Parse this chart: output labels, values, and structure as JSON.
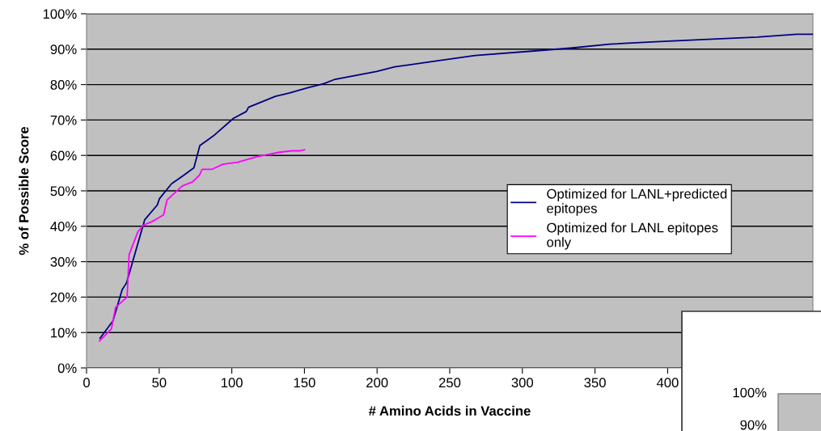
{
  "chart_data": [
    {
      "type": "line",
      "xlabel": "# Amino Acids in Vaccine",
      "ylabel": "% of Possible Score",
      "xlim": [
        0,
        500
      ],
      "xticks": [
        0,
        50,
        100,
        150,
        200,
        250,
        300,
        350,
        400
      ],
      "ylim": [
        0,
        100
      ],
      "yticks": [
        {
          "value": 0,
          "label": "0%"
        },
        {
          "value": 10,
          "label": "10%"
        },
        {
          "value": 20,
          "label": "20%"
        },
        {
          "value": 30,
          "label": "30%"
        },
        {
          "value": 40,
          "label": "40%"
        },
        {
          "value": 50,
          "label": "50%"
        },
        {
          "value": 60,
          "label": "60%"
        },
        {
          "value": 70,
          "label": "70%"
        },
        {
          "value": 80,
          "label": "80%"
        },
        {
          "value": 90,
          "label": "90%"
        },
        {
          "value": 100,
          "label": "100%"
        }
      ],
      "grid": "y",
      "legend": "right",
      "marker": "none",
      "line_style": "solid",
      "series": [
        {
          "name": "Optimized for LANL+predicted epitopes",
          "color": "#000080",
          "x": [
            9.3,
            18.2,
            24.5,
            27.5,
            40,
            48.7,
            50.2,
            58.5,
            66.9,
            73.9,
            78,
            87.3,
            101.2,
            110,
            111.5,
            130,
            139.4,
            152,
            163.5,
            170.4,
            199.7,
            212.2,
            242.7,
            267.5,
            308.2,
            333,
            360,
            391.7,
            427.7,
            461.6,
            488.7,
            500
          ],
          "values": [
            8.4,
            13.3,
            22.1,
            24,
            41.8,
            46,
            47.8,
            52,
            54.4,
            56.5,
            62.8,
            65.5,
            70.5,
            72.4,
            73.6,
            76.7,
            77.6,
            79.1,
            80.3,
            81.4,
            83.7,
            85,
            86.8,
            88.2,
            89.5,
            90.3,
            91.4,
            92.1,
            92.8,
            93.4,
            94.2,
            94.2
          ]
        },
        {
          "name": "Optimized for LANL epitopes only",
          "color": "#ff00ff",
          "x": [
            8.9,
            17.1,
            20,
            27.9,
            29.3,
            35.3,
            39,
            45,
            53,
            55.4,
            66,
            72.8,
            77.7,
            79.6,
            86.5,
            93.9,
            104.1,
            117.1,
            132.9,
            141.3,
            146.8,
            150
          ],
          "values": [
            7.6,
            11,
            17.1,
            20,
            32,
            38.4,
            40.3,
            41.3,
            43.2,
            47.4,
            51.4,
            52.5,
            54.4,
            56.1,
            56.1,
            57.5,
            58.1,
            59.6,
            60.9,
            61.3,
            61.3,
            61.6
          ]
        }
      ]
    },
    {
      "type": "other",
      "annotations": [
        "100%",
        "90%"
      ]
    }
  ]
}
